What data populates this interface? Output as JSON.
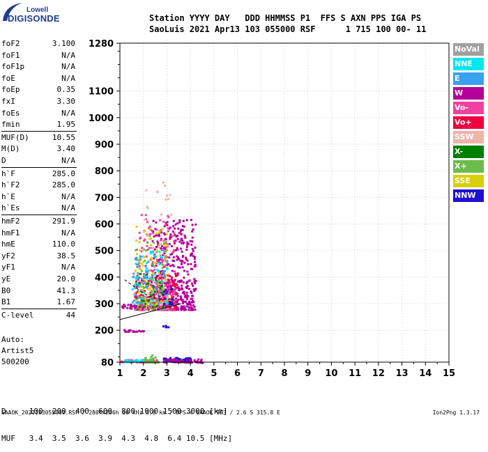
{
  "logo": {
    "brand_top": "Lowell",
    "brand_main": "DIGISONDE"
  },
  "header": {
    "line1": "Station YYYY DAY   DDD HHMMSS P1  FFS S AXN PPS IGA PS",
    "line2": "SaoLuis 2021 Apr13 103 055000 RSF      1 715 100 00- 11"
  },
  "params": [
    {
      "name": "foF2",
      "value": "3.100"
    },
    {
      "name": "foF1",
      "value": "N/A"
    },
    {
      "name": "foF1p",
      "value": "N/A"
    },
    {
      "name": "foE",
      "value": "N/A"
    },
    {
      "name": "foEp",
      "value": "0.35"
    },
    {
      "name": "fxI",
      "value": "3.30"
    },
    {
      "name": "foEs",
      "value": "N/A"
    },
    {
      "name": "fmin",
      "value": "1.95"
    },
    {
      "name": "MUF(D)",
      "value": "10.55"
    },
    {
      "name": "M(D)",
      "value": "3.40"
    },
    {
      "name": "D",
      "value": "N/A"
    },
    {
      "name": "h`F",
      "value": "285.0"
    },
    {
      "name": "h`F2",
      "value": "285.0"
    },
    {
      "name": "h`E",
      "value": "N/A"
    },
    {
      "name": "h`Es",
      "value": "N/A"
    },
    {
      "name": "hmF2",
      "value": "291.9"
    },
    {
      "name": "hmF1",
      "value": "N/A"
    },
    {
      "name": "hmE",
      "value": "110.0"
    },
    {
      "name": "yF2",
      "value": "38.5"
    },
    {
      "name": "yF1",
      "value": "N/A"
    },
    {
      "name": "yE",
      "value": "20.0"
    },
    {
      "name": "B0",
      "value": "41.3"
    },
    {
      "name": "B1",
      "value": "1.67"
    },
    {
      "name": "C-level",
      "value": "44"
    }
  ],
  "auto": {
    "line1": "Auto:",
    "line2": "Artist5",
    "line3": "500200"
  },
  "legend": [
    {
      "label": "NoVal",
      "color": "#a0a0a0"
    },
    {
      "label": "NNE",
      "color": "#00e6f0"
    },
    {
      "label": "E",
      "color": "#3aa0f0"
    },
    {
      "label": "W",
      "color": "#b4009a"
    },
    {
      "label": "Vo-",
      "color": "#f040a0"
    },
    {
      "label": "Vo+",
      "color": "#f00040"
    },
    {
      "label": "SSW",
      "color": "#f0b4a8"
    },
    {
      "label": "X-",
      "color": "#008000"
    },
    {
      "label": "X+",
      "color": "#6cbc4c"
    },
    {
      "label": "SSE",
      "color": "#d8d000"
    },
    {
      "label": "NNW",
      "color": "#2010d0"
    }
  ],
  "bottom": {
    "d_row": "D     100  200  400  600  800 1000 1500 3000 [km]",
    "muf_row": "MUF   3.4  3.5  3.6  3.9  4.3  4.8  6.4 10.5 [MHz]"
  },
  "footer": {
    "left": "SAAOK_2021103055000.RSF / 280fx256h 50 kHz 5.0 km / DPS-4 SAAOK 903 / 2.6 S 315.8 E",
    "right": "Ion2Png 1.3.17"
  },
  "chart_data": {
    "type": "scatter",
    "title": "",
    "xlabel": "",
    "ylabel": "",
    "xlim": [
      1,
      15
    ],
    "ylim": [
      80,
      1280
    ],
    "x_ticks": [
      1,
      2,
      3,
      4,
      5,
      6,
      7,
      8,
      9,
      10,
      11,
      12,
      13,
      14,
      15
    ],
    "y_ticks": [
      80,
      200,
      300,
      400,
      500,
      600,
      700,
      800,
      900,
      1000,
      1100,
      1280
    ],
    "grid": true,
    "legend_position": "right",
    "traces": [
      {
        "name": "",
        "points": [
          [
            1.0,
            240
          ],
          [
            3.6,
            300
          ]
        ]
      },
      {
        "name": "",
        "points": [
          [
            1.2,
            390
          ],
          [
            1.6,
            365
          ],
          [
            2.0,
            340
          ],
          [
            2.4,
            322
          ],
          [
            2.8,
            316
          ],
          [
            3.2,
            318
          ]
        ]
      }
    ],
    "echo_regions": [
      {
        "color": "#b4009a",
        "x": [
          2.3,
          4.2
        ],
        "y": [
          280,
          620
        ],
        "n": 420
      },
      {
        "color": "#f00040",
        "x": [
          1.6,
          3.4
        ],
        "y": [
          280,
          420
        ],
        "n": 220
      },
      {
        "color": "#f040a0",
        "x": [
          1.6,
          3.3
        ],
        "y": [
          280,
          640
        ],
        "n": 160
      },
      {
        "color": "#d8d000",
        "x": [
          1.6,
          3.0
        ],
        "y": [
          300,
          600
        ],
        "n": 90
      },
      {
        "color": "#6cbc4c",
        "x": [
          1.6,
          3.0
        ],
        "y": [
          280,
          560
        ],
        "n": 70
      },
      {
        "color": "#3aa0f0",
        "x": [
          1.5,
          3.0
        ],
        "y": [
          300,
          520
        ],
        "n": 60
      },
      {
        "color": "#00e6f0",
        "x": [
          1.5,
          3.0
        ],
        "y": [
          300,
          500
        ],
        "n": 45
      },
      {
        "color": "#f0b4a8",
        "x": [
          2.0,
          3.2
        ],
        "y": [
          300,
          760
        ],
        "n": 40
      },
      {
        "color": "#a0a0a0",
        "x": [
          1.5,
          3.0
        ],
        "y": [
          280,
          480
        ],
        "n": 35
      },
      {
        "color": "#008000",
        "x": [
          1.7,
          2.8
        ],
        "y": [
          290,
          420
        ],
        "n": 25
      },
      {
        "color": "#2010d0",
        "x": [
          2.8,
          3.2
        ],
        "y": [
          300,
          360
        ],
        "n": 15
      },
      {
        "color": "#b4009a",
        "x": [
          1.0,
          1.8
        ],
        "y": [
          285,
          300
        ],
        "n": 20
      },
      {
        "color": "#2010d0",
        "x": [
          2.8,
          4.0
        ],
        "y": [
          84,
          100
        ],
        "n": 90
      },
      {
        "color": "#b4009a",
        "x": [
          2.8,
          4.5
        ],
        "y": [
          82,
          95
        ],
        "n": 60
      },
      {
        "color": "#f040a0",
        "x": [
          1.0,
          2.6
        ],
        "y": [
          82,
          92
        ],
        "n": 60
      },
      {
        "color": "#6cbc4c",
        "x": [
          2.0,
          2.6
        ],
        "y": [
          82,
          110
        ],
        "n": 30
      },
      {
        "color": "#00e6f0",
        "x": [
          1.1,
          2.0
        ],
        "y": [
          82,
          92
        ],
        "n": 20
      },
      {
        "color": "#b4009a",
        "x": [
          1.0,
          2.0
        ],
        "y": [
          198,
          206
        ],
        "n": 18
      },
      {
        "color": "#2010d0",
        "x": [
          2.7,
          3.1
        ],
        "y": [
          215,
          220
        ],
        "n": 6
      }
    ]
  }
}
